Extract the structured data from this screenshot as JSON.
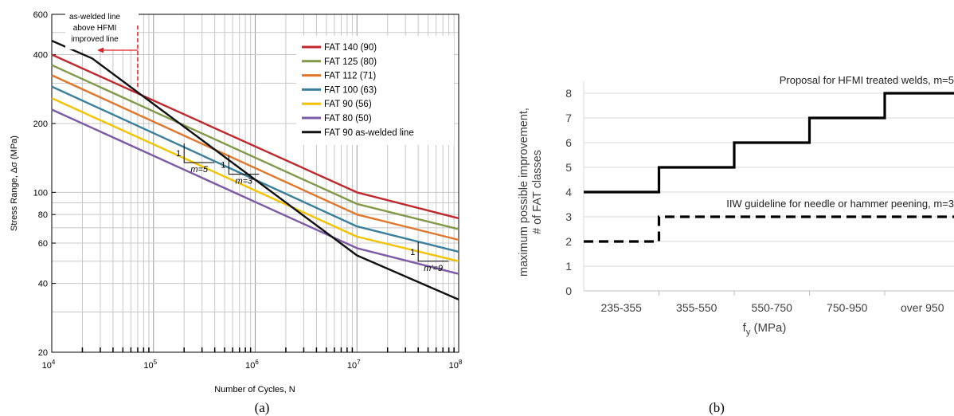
{
  "figure": {
    "caption_a": "(a)",
    "caption_b": "(b)"
  },
  "chart_data": [
    {
      "type": "line",
      "panel": "(a)",
      "xlabel": "Number of Cycles, N",
      "ylabel": "Stress Range, Δσ (MPa)",
      "xscale": "log",
      "yscale": "log",
      "xlim": [
        10000,
        100000000
      ],
      "ylim": [
        20,
        600
      ],
      "x_ticks": [
        {
          "v": 10000,
          "base": "10",
          "exp": "4"
        },
        {
          "v": 100000,
          "base": "10",
          "exp": "5"
        },
        {
          "v": 1000000,
          "base": "10",
          "exp": "6"
        },
        {
          "v": 10000000,
          "base": "10",
          "exp": "7"
        },
        {
          "v": 100000000,
          "base": "10",
          "exp": "8"
        }
      ],
      "y_ticks": [
        20,
        40,
        60,
        80,
        100,
        200,
        400,
        600
      ],
      "grid": true,
      "legend_position": "top-right",
      "series": [
        {
          "name": "FAT 140 (90)",
          "color": "#c0282d",
          "points": [
            [
              10000,
              400
            ],
            [
              10000000,
              100
            ],
            [
              100000000,
              77
            ]
          ]
        },
        {
          "name": "FAT 125 (80)",
          "color": "#7f9a48",
          "points": [
            [
              10000,
              360
            ],
            [
              10000000,
              89
            ],
            [
              100000000,
              69
            ]
          ]
        },
        {
          "name": "FAT 112 (71)",
          "color": "#e0762b",
          "points": [
            [
              10000,
              325
            ],
            [
              10000000,
              80
            ],
            [
              100000000,
              62
            ]
          ]
        },
        {
          "name": "FAT 100 (63)",
          "color": "#3a7f9c",
          "points": [
            [
              10000,
              290
            ],
            [
              10000000,
              71
            ],
            [
              100000000,
              55
            ]
          ]
        },
        {
          "name": "FAT 90 (56)",
          "color": "#f4c300",
          "points": [
            [
              10000,
              258
            ],
            [
              10000000,
              64
            ],
            [
              100000000,
              50
            ]
          ]
        },
        {
          "name": "FAT 80 (50)",
          "color": "#7d5aa6",
          "points": [
            [
              10000,
              230
            ],
            [
              10000000,
              57
            ],
            [
              100000000,
              44
            ]
          ]
        },
        {
          "name": "FAT 90 as-welded line",
          "color": "#111111",
          "points": [
            [
              10000,
              460
            ],
            [
              25000,
              385
            ],
            [
              10000000,
              53
            ],
            [
              100000000,
              34
            ]
          ]
        }
      ],
      "slope_triangles": [
        {
          "label_one": "1",
          "label_m": "m=5",
          "n": 200000,
          "s": 135
        },
        {
          "label_one": "1",
          "label_m": "m=3",
          "n": 550000,
          "s": 120
        },
        {
          "label_one": "1",
          "label_m": "m'=9",
          "n": 40000000,
          "s": 50
        }
      ],
      "annotation": {
        "lines": [
          "as-welded line",
          "above HFMI",
          "improved line"
        ],
        "marker_n": 70000
      }
    },
    {
      "type": "line",
      "panel": "(b)",
      "xlabel": "f",
      "xlabel_sub": "y",
      "xlabel_unit": " (MPa)",
      "ylabel_lines": [
        "maximum possible improvement,",
        "# of FAT classes"
      ],
      "categories": [
        "235-355",
        "355-550",
        "550-750",
        "750-950",
        "over 950"
      ],
      "ylim": [
        0,
        8
      ],
      "y_ticks": [
        0,
        1,
        2,
        3,
        4,
        5,
        6,
        7,
        8
      ],
      "grid": true,
      "series": [
        {
          "name": "Proposal for HFMI treated welds, m=5",
          "style": "solid",
          "values": [
            4,
            5,
            6,
            7,
            8
          ]
        },
        {
          "name": "IIW guideline for needle or hammer peening, m=3",
          "style": "dashed",
          "values": [
            2,
            3,
            3,
            3,
            3
          ]
        }
      ]
    }
  ]
}
